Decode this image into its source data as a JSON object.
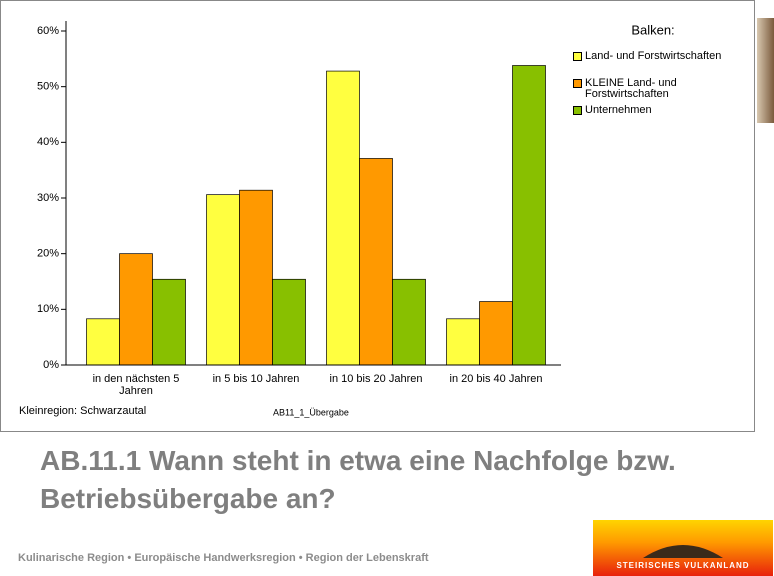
{
  "slide_title": "AB.11.1 Wann steht in etwa eine Nachfolge bzw. Betriebsübergabe an?",
  "footer": "Kulinarische Region • Europäische Handwerksregion • Region der Lebenskraft",
  "logo_text": "STEIRISCHES VULKANLAND",
  "chart_data": {
    "type": "bar",
    "legend_title": "Balken:",
    "note": "Kleinregion: Schwarzautal",
    "variable": "AB11_1_Übergabe",
    "categories": [
      "in den nächsten 5 Jahren",
      "in 5 bis 10 Jahren",
      "in 10 bis 20 Jahren",
      "in 20 bis 40 Jahren"
    ],
    "series": [
      {
        "name": "Land- und Forstwirtschaften",
        "color": "#ffff40",
        "values": [
          8.3,
          30.6,
          52.8,
          8.3
        ]
      },
      {
        "name": "KLEINE Land- und Forstwirtschaften",
        "color": "#ff9900",
        "values": [
          20,
          31.4,
          37.1,
          11.4
        ]
      },
      {
        "name": "Unternehmen",
        "color": "#88c000",
        "values": [
          15.4,
          15.4,
          15.4,
          53.8
        ]
      }
    ],
    "ylim": [
      0,
      60
    ],
    "yticks": [
      {
        "value": 0,
        "label": "0%"
      },
      {
        "value": 10,
        "label": "10%"
      },
      {
        "value": 20,
        "label": "20%"
      },
      {
        "value": 30,
        "label": "30%"
      },
      {
        "value": 40,
        "label": "40%"
      },
      {
        "value": 50,
        "label": "50%"
      },
      {
        "value": 60,
        "label": "60%"
      }
    ]
  }
}
